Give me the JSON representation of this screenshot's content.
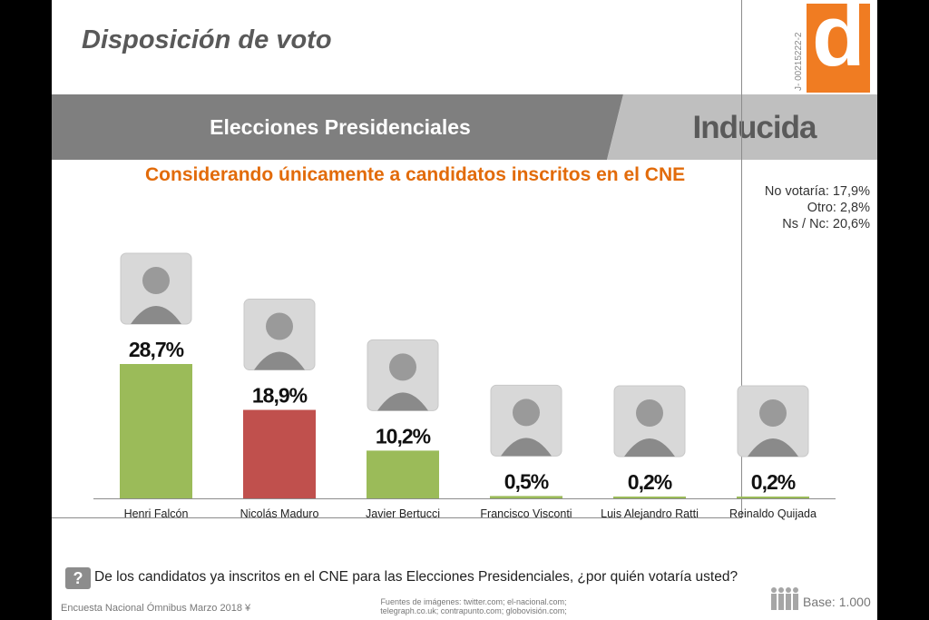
{
  "page": {
    "title": "Disposición de voto",
    "band_title": "Elecciones Presidenciales",
    "band_mode": "Inducida",
    "subtitle": "Considerando únicamente a candidatos inscritos en el CNE",
    "registration": "J- 00215222-2",
    "logo_letter": "d",
    "side_notes": [
      "No votaría: 17,9%",
      "Otro: 2,8%",
      "Ns / Nc: 20,6%"
    ],
    "question_mark": "?",
    "question": "De los candidatos ya inscritos en el CNE para las Elecciones Presidenciales, ¿por quién votaría usted?",
    "footer_left": "Encuesta Nacional Ómnibus Marzo 2018 ¥",
    "credits": [
      "Fuentes de imágenes: twitter.com;  el-nacional.com;",
      "telegraph.co.uk;  contrapunto.com;  globovisión.com;"
    ],
    "base": "Base: 1.000"
  },
  "colors": {
    "green": "#9bbb59",
    "red": "#c0504d",
    "orange": "#e26b0a",
    "gray_band": "#7f7f7f",
    "light_band": "#bfbfbf",
    "logo": "#f07c22"
  },
  "chart_data": {
    "type": "bar",
    "categories": [
      "Henri Falcón",
      "Nicolás Maduro",
      "Javier Bertucci",
      "Francisco Visconti",
      "Luis Alejandro Ratti",
      "Reinaldo Quijada"
    ],
    "values": [
      28.7,
      18.9,
      10.2,
      0.5,
      0.2,
      0.2
    ],
    "labels": [
      "28,7%",
      "18,9%",
      "10,2%",
      "0,5%",
      "0,2%",
      "0,2%"
    ],
    "bar_colors": [
      "#9bbb59",
      "#c0504d",
      "#9bbb59",
      "#9bbb59",
      "#9bbb59",
      "#9bbb59"
    ],
    "ylim": [
      0,
      28.7
    ],
    "grid": false,
    "legend": "none"
  }
}
